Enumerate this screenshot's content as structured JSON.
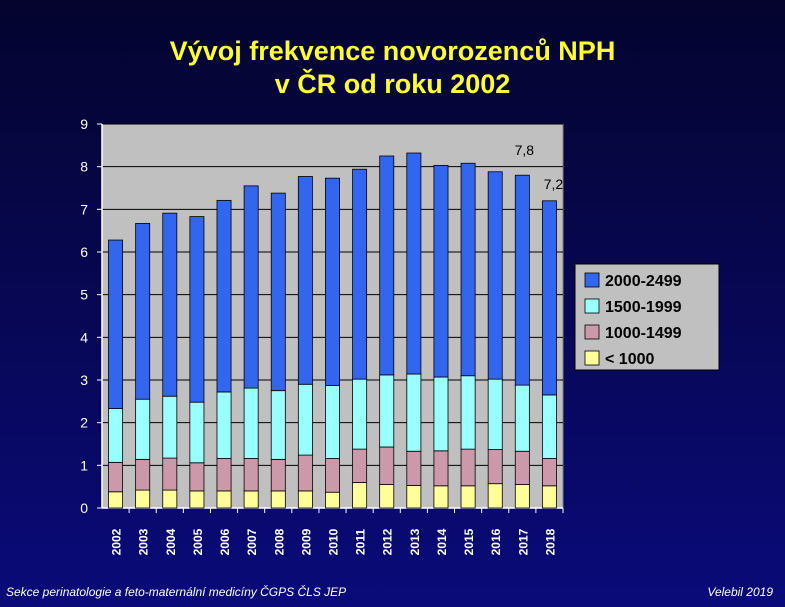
{
  "title": {
    "line1": "Vývoj frekvence novorozenců NPH",
    "line2": "v ČR od roku 2002"
  },
  "footer": {
    "left": "Sekce perinatologie a feto-maternální medicíny ČGPS ČLS JEP",
    "right": "Velebil 2019"
  },
  "colors": {
    "background": "#0a0a6e",
    "plot_area": "#c0c0c0",
    "title": "#ffff33"
  },
  "chart_data": {
    "type": "bar",
    "stacked": true,
    "title": "Vývoj frekvence novorozenců NPH v ČR od roku 2002",
    "xlabel": "",
    "ylabel": "",
    "ylim": [
      0,
      9
    ],
    "yticks": [
      0,
      1,
      2,
      3,
      4,
      5,
      6,
      7,
      8,
      9
    ],
    "grid": true,
    "legend_position": "right",
    "categories": [
      "2002",
      "2003",
      "2004",
      "2005",
      "2006",
      "2007",
      "2008",
      "2009",
      "2010",
      "2011",
      "2012",
      "2013",
      "2014",
      "2015",
      "2016",
      "2017",
      "2018"
    ],
    "series": [
      {
        "name": "< 1000",
        "color": "#ffff99",
        "values": [
          0.38,
          0.42,
          0.42,
          0.4,
          0.4,
          0.4,
          0.4,
          0.4,
          0.37,
          0.6,
          0.55,
          0.53,
          0.52,
          0.52,
          0.57,
          0.55,
          0.52
        ]
      },
      {
        "name": "1000-1499",
        "color": "#cc99aa",
        "values": [
          0.69,
          0.72,
          0.75,
          0.66,
          0.76,
          0.76,
          0.74,
          0.84,
          0.79,
          0.78,
          0.88,
          0.8,
          0.82,
          0.86,
          0.8,
          0.78,
          0.64
        ]
      },
      {
        "name": "1500-1999",
        "color": "#99ffff",
        "values": [
          1.26,
          1.41,
          1.45,
          1.42,
          1.56,
          1.65,
          1.61,
          1.66,
          1.71,
          1.64,
          1.69,
          1.81,
          1.73,
          1.72,
          1.65,
          1.55,
          1.49
        ]
      },
      {
        "name": "2000-2499",
        "color": "#3366ee",
        "values": [
          3.95,
          4.12,
          4.29,
          4.35,
          4.49,
          4.74,
          4.63,
          4.87,
          4.86,
          4.92,
          5.13,
          5.18,
          4.96,
          4.98,
          4.86,
          4.92,
          4.55
        ]
      }
    ],
    "totals": [
      6.28,
      6.67,
      6.91,
      6.83,
      7.21,
      7.55,
      7.38,
      7.77,
      7.73,
      7.94,
      8.25,
      8.32,
      8.03,
      8.08,
      7.88,
      7.8,
      7.2
    ],
    "data_labels": [
      {
        "category": "2017",
        "text": "7,8"
      },
      {
        "category": "2018",
        "text": "7,2"
      }
    ]
  }
}
